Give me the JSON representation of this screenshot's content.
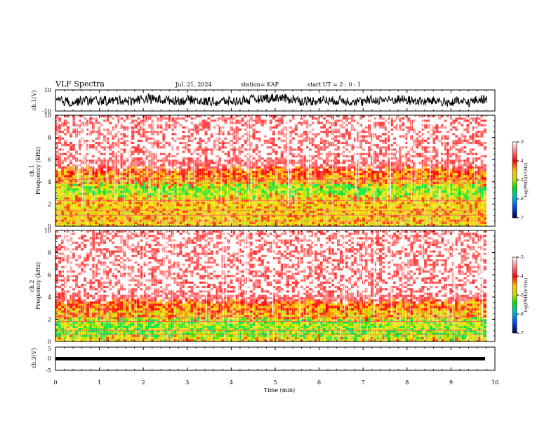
{
  "header": {
    "title": "VLF Spectra",
    "date": "Jul. 21, 2024",
    "station": "station= KAP",
    "start": "start UT =  2 : 0  : 1"
  },
  "chart_data": [
    {
      "type": "line",
      "panel": "ch1-waveform",
      "ylabel": "ch.1(V)",
      "ylim": [
        -10,
        10
      ],
      "yticks": [
        "10",
        "-10"
      ],
      "xlim": [
        0,
        10
      ]
    },
    {
      "type": "heatmap",
      "panel": "ch1-spectrogram",
      "ylabel_line1": "ch.1",
      "ylabel_line2": "Frequency (kHz)",
      "ylim": [
        0,
        10
      ],
      "yticks": [
        "0",
        "2",
        "4",
        "6",
        "8",
        "10"
      ],
      "xlim": [
        0,
        9.8
      ],
      "colorbar": {
        "label": "log(PSD)(V²/Hz)",
        "range": [
          -7,
          -3
        ],
        "ticks": [
          "-3",
          "-4",
          "-5",
          "-6",
          "-7"
        ]
      }
    },
    {
      "type": "heatmap",
      "panel": "ch2-spectrogram",
      "ylabel_line1": "ch.2",
      "ylabel_line2": "Frequency (kHz)",
      "ylim": [
        0,
        10
      ],
      "yticks": [
        "0",
        "2",
        "4",
        "6",
        "8",
        "10"
      ],
      "xlim": [
        0,
        9.8
      ],
      "colorbar": {
        "label": "log(PSD)(V²/Hz)",
        "range": [
          -7,
          -3
        ],
        "ticks": [
          "-3",
          "-4",
          "-5",
          "-6",
          "-7"
        ]
      }
    },
    {
      "type": "line",
      "panel": "ch3-waveform",
      "ylabel": "ch.3(V)",
      "ylim": [
        -5,
        5
      ],
      "yticks": [
        "5",
        "0",
        "-5"
      ],
      "xlim": [
        0,
        10
      ],
      "xlabel": "Time (min)",
      "xticks": [
        "0",
        "1",
        "2",
        "3",
        "4",
        "5",
        "6",
        "7",
        "8",
        "9",
        "10"
      ]
    }
  ]
}
